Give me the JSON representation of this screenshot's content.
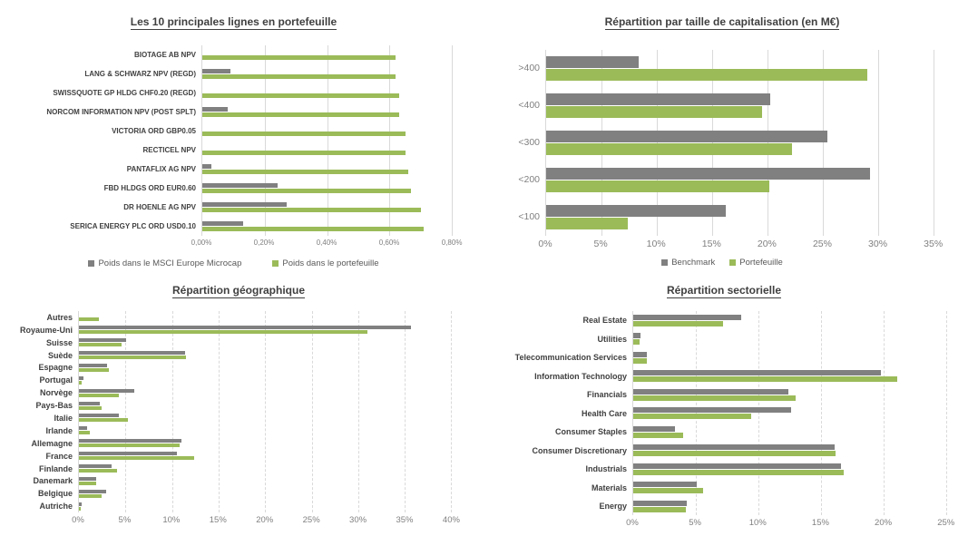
{
  "colors": {
    "benchmark": "#808080",
    "portfolio": "#9BBB59",
    "title_text": "#404040",
    "axis_text": "#808080",
    "gridline": "#D9D9D9"
  },
  "chart_data": [
    {
      "type": "bar",
      "orientation": "horizontal",
      "title": "Les 10 principales lignes en portefeuille",
      "grid": "solid",
      "categories": [
        "BIOTAGE AB NPV",
        "LANG & SCHWARZ NPV (REGD)",
        "SWISSQUOTE GP HLDG CHF0.20 (REGD)",
        "NORCOM INFORMATION NPV (POST SPLT)",
        "VICTORIA ORD GBP0.05",
        "RECTICEL NPV",
        "PANTAFLIX AG NPV",
        "FBD HLDGS ORD EUR0.60",
        "DR HOENLE AG NPV",
        "SERICA ENERGY PLC ORD USD0.10"
      ],
      "series": [
        {
          "name": "Poids dans le MSCI Europe Microcap",
          "color": "#808080",
          "values": [
            0,
            0.09,
            0,
            0.08,
            0,
            0,
            0.03,
            0.24,
            0.27,
            0.13
          ]
        },
        {
          "name": "Poids dans le portefeuille",
          "color": "#9BBB59",
          "values": [
            0.62,
            0.62,
            0.63,
            0.63,
            0.65,
            0.65,
            0.66,
            0.67,
            0.7,
            0.71
          ]
        }
      ],
      "xlim": [
        0,
        0.82
      ],
      "ticks": [
        {
          "v": 0,
          "label": "0,00%"
        },
        {
          "v": 0.2,
          "label": "0,20%"
        },
        {
          "v": 0.4,
          "label": "0,40%"
        },
        {
          "v": 0.6,
          "label": "0,60%"
        },
        {
          "v": 0.8,
          "label": "0,80%"
        }
      ]
    },
    {
      "type": "bar",
      "orientation": "horizontal",
      "title": "Répartition par taille de capitalisation (en M€)",
      "grid": "solid",
      "categories": [
        ">400",
        "<400",
        "<300",
        "<200",
        "<100"
      ],
      "series": [
        {
          "name": "Benchmark",
          "color": "#808080",
          "values": [
            8.4,
            20.3,
            25.4,
            29.3,
            16.2
          ]
        },
        {
          "name": "Portefeuille",
          "color": "#9BBB59",
          "values": [
            29.0,
            19.5,
            22.2,
            20.2,
            7.4
          ]
        }
      ],
      "xlim": [
        0,
        36.5
      ],
      "ticks": [
        {
          "v": 0,
          "label": "0%"
        },
        {
          "v": 5,
          "label": "5%"
        },
        {
          "v": 10,
          "label": "10%"
        },
        {
          "v": 15,
          "label": "15%"
        },
        {
          "v": 20,
          "label": "20%"
        },
        {
          "v": 25,
          "label": "25%"
        },
        {
          "v": 30,
          "label": "30%"
        },
        {
          "v": 35,
          "label": "35%"
        }
      ]
    },
    {
      "type": "bar",
      "orientation": "horizontal",
      "title": "Répartition géographique",
      "grid": "dashed",
      "categories": [
        "Autres",
        "Royaume-Uni",
        "Suisse",
        "Suède",
        "Espagne",
        "Portugal",
        "Norvège",
        "Pays-Bas",
        "Italie",
        "Irlande",
        "Allemagne",
        "France",
        "Finlande",
        "Danemark",
        "Belgique",
        "Autriche"
      ],
      "series": [
        {
          "name": "Benchmark",
          "color": "#808080",
          "values": [
            0,
            35.7,
            5.1,
            11.4,
            3.0,
            0.5,
            5.9,
            2.2,
            4.3,
            0.9,
            11.0,
            10.5,
            3.5,
            1.9,
            2.9,
            0.3
          ]
        },
        {
          "name": "Portefeuille",
          "color": "#9BBB59",
          "values": [
            2.1,
            31.0,
            4.6,
            11.5,
            3.2,
            0.3,
            4.3,
            2.4,
            5.3,
            1.2,
            10.8,
            12.4,
            4.1,
            1.9,
            2.4,
            0.2
          ]
        }
      ],
      "xlim": [
        0,
        42
      ],
      "ticks": [
        {
          "v": 0,
          "label": "0%"
        },
        {
          "v": 5,
          "label": "5%"
        },
        {
          "v": 10,
          "label": "10%"
        },
        {
          "v": 15,
          "label": "15%"
        },
        {
          "v": 20,
          "label": "20%"
        },
        {
          "v": 25,
          "label": "25%"
        },
        {
          "v": 30,
          "label": "30%"
        },
        {
          "v": 35,
          "label": "35%"
        },
        {
          "v": 40,
          "label": "40%"
        }
      ]
    },
    {
      "type": "bar",
      "orientation": "horizontal",
      "title": "Répartition sectorielle",
      "grid": "dashed",
      "categories": [
        "Real Estate",
        "Utilities",
        "Telecommunication Services",
        "Information Technology",
        "Financials",
        "Health Care",
        "Consumer Staples",
        "Consumer Discretionary",
        "Industrials",
        "Materials",
        "Energy"
      ],
      "series": [
        {
          "name": "Benchmark",
          "color": "#808080",
          "values": [
            8.6,
            0.6,
            1.1,
            19.8,
            12.4,
            12.6,
            3.3,
            16.1,
            16.6,
            5.1,
            4.3
          ]
        },
        {
          "name": "Portefeuille",
          "color": "#9BBB59",
          "values": [
            7.2,
            0.5,
            1.1,
            21.1,
            13.0,
            9.4,
            4.0,
            16.2,
            16.8,
            5.6,
            4.2
          ]
        }
      ],
      "xlim": [
        0,
        25.6
      ],
      "ticks": [
        {
          "v": 0,
          "label": "0%"
        },
        {
          "v": 5,
          "label": "5%"
        },
        {
          "v": 10,
          "label": "10%"
        },
        {
          "v": 15,
          "label": "15%"
        },
        {
          "v": 20,
          "label": "20%"
        },
        {
          "v": 25,
          "label": "25%"
        }
      ]
    }
  ]
}
